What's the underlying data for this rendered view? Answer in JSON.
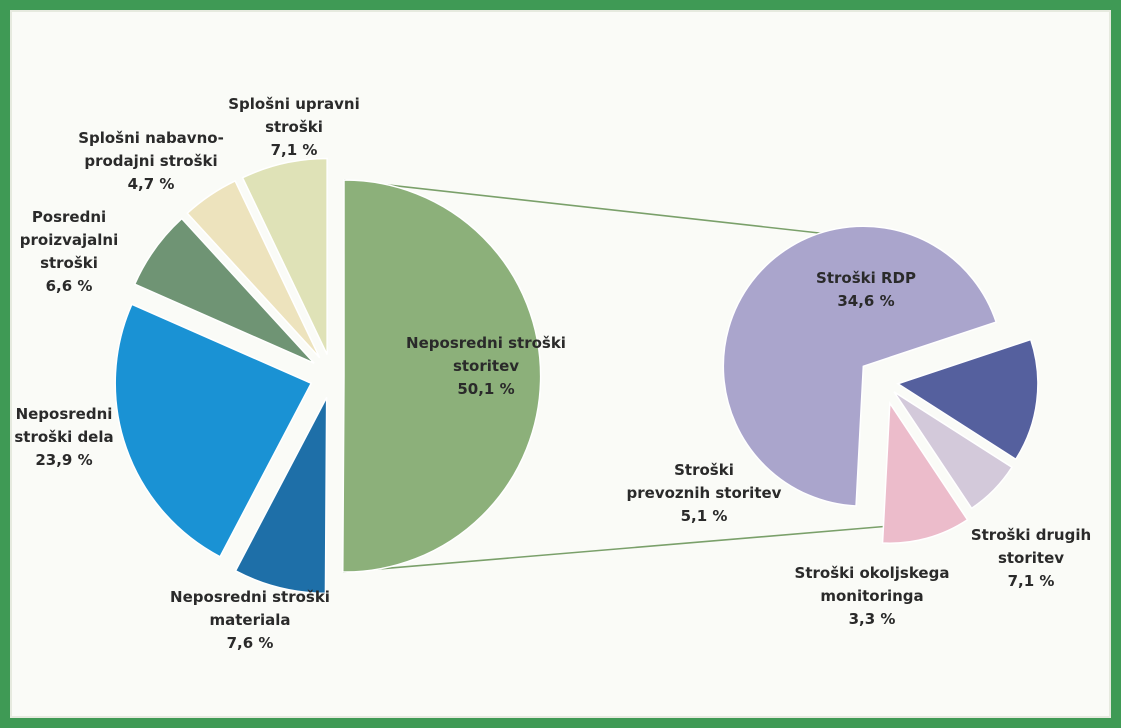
{
  "chart_data": {
    "type": "pie",
    "title": "",
    "slices": [
      {
        "name": "Neposredni stroški storitev",
        "value_label": "50,1 %",
        "value": 50.1,
        "color": "#8cb07a"
      },
      {
        "name": "Neposredni stroški materiala",
        "value_label": "7,6 %",
        "value": 7.6,
        "color": "#1e6fa8"
      },
      {
        "name": "Neposredni stroški dela",
        "value_label": "23,9 %",
        "value": 23.9,
        "color": "#1a92d4"
      },
      {
        "name": "Posredni proizvajalni stroški",
        "value_label": "6,6 %",
        "value": 6.6,
        "color": "#6f9474"
      },
      {
        "name": "Splošni nabavno-prodajni stroški",
        "value_label": "4,7 %",
        "value": 4.7,
        "color": "#ede3bd"
      },
      {
        "name": "Splošni upravni stroški",
        "value_label": "7,1 %",
        "value": 7.1,
        "color": "#dfe2b7"
      }
    ],
    "breakdown": {
      "of": "Neposredni stroški storitev",
      "slices": [
        {
          "name": "Stroški RDP",
          "value_label": "34,6 %",
          "value": 34.6,
          "color": "#aaa5cc"
        },
        {
          "name": "Stroški drugih storitev",
          "value_label": "7,1 %",
          "value": 7.1,
          "color": "#55609e"
        },
        {
          "name": "Stroški okoljskega monitoringa",
          "value_label": "3,3 %",
          "value": 3.3,
          "color": "#d3c9da"
        },
        {
          "name": "Stroški prevoznih storitev",
          "value_label": "5,1 %",
          "value": 5.1,
          "color": "#ecbccb"
        }
      ]
    }
  },
  "labels": {
    "services": [
      "Neposredni stroški",
      "storitev",
      "50,1 %"
    ],
    "material": [
      "Neposredni stroški",
      "materiala",
      "7,6 %"
    ],
    "labour": [
      "Neposredni",
      "stroški dela",
      "23,9 %"
    ],
    "indirect": [
      "Posredni",
      "proizvajalni",
      "stroški",
      "6,6 %"
    ],
    "sales": [
      "Splošni nabavno-",
      "prodajni stroški",
      "4,7 %"
    ],
    "admin": [
      "Splošni upravni",
      "stroški",
      "7,1 %"
    ],
    "rdp": [
      "Stroški RDP",
      "34,6 %"
    ],
    "other": [
      "Stroški drugih",
      "storitev",
      "7,1 %"
    ],
    "monitoring": [
      "Stroški okoljskega",
      "monitoringa",
      "3,3 %"
    ],
    "transport": [
      "Stroški",
      "prevoznih storitev",
      "5,1 %"
    ]
  }
}
